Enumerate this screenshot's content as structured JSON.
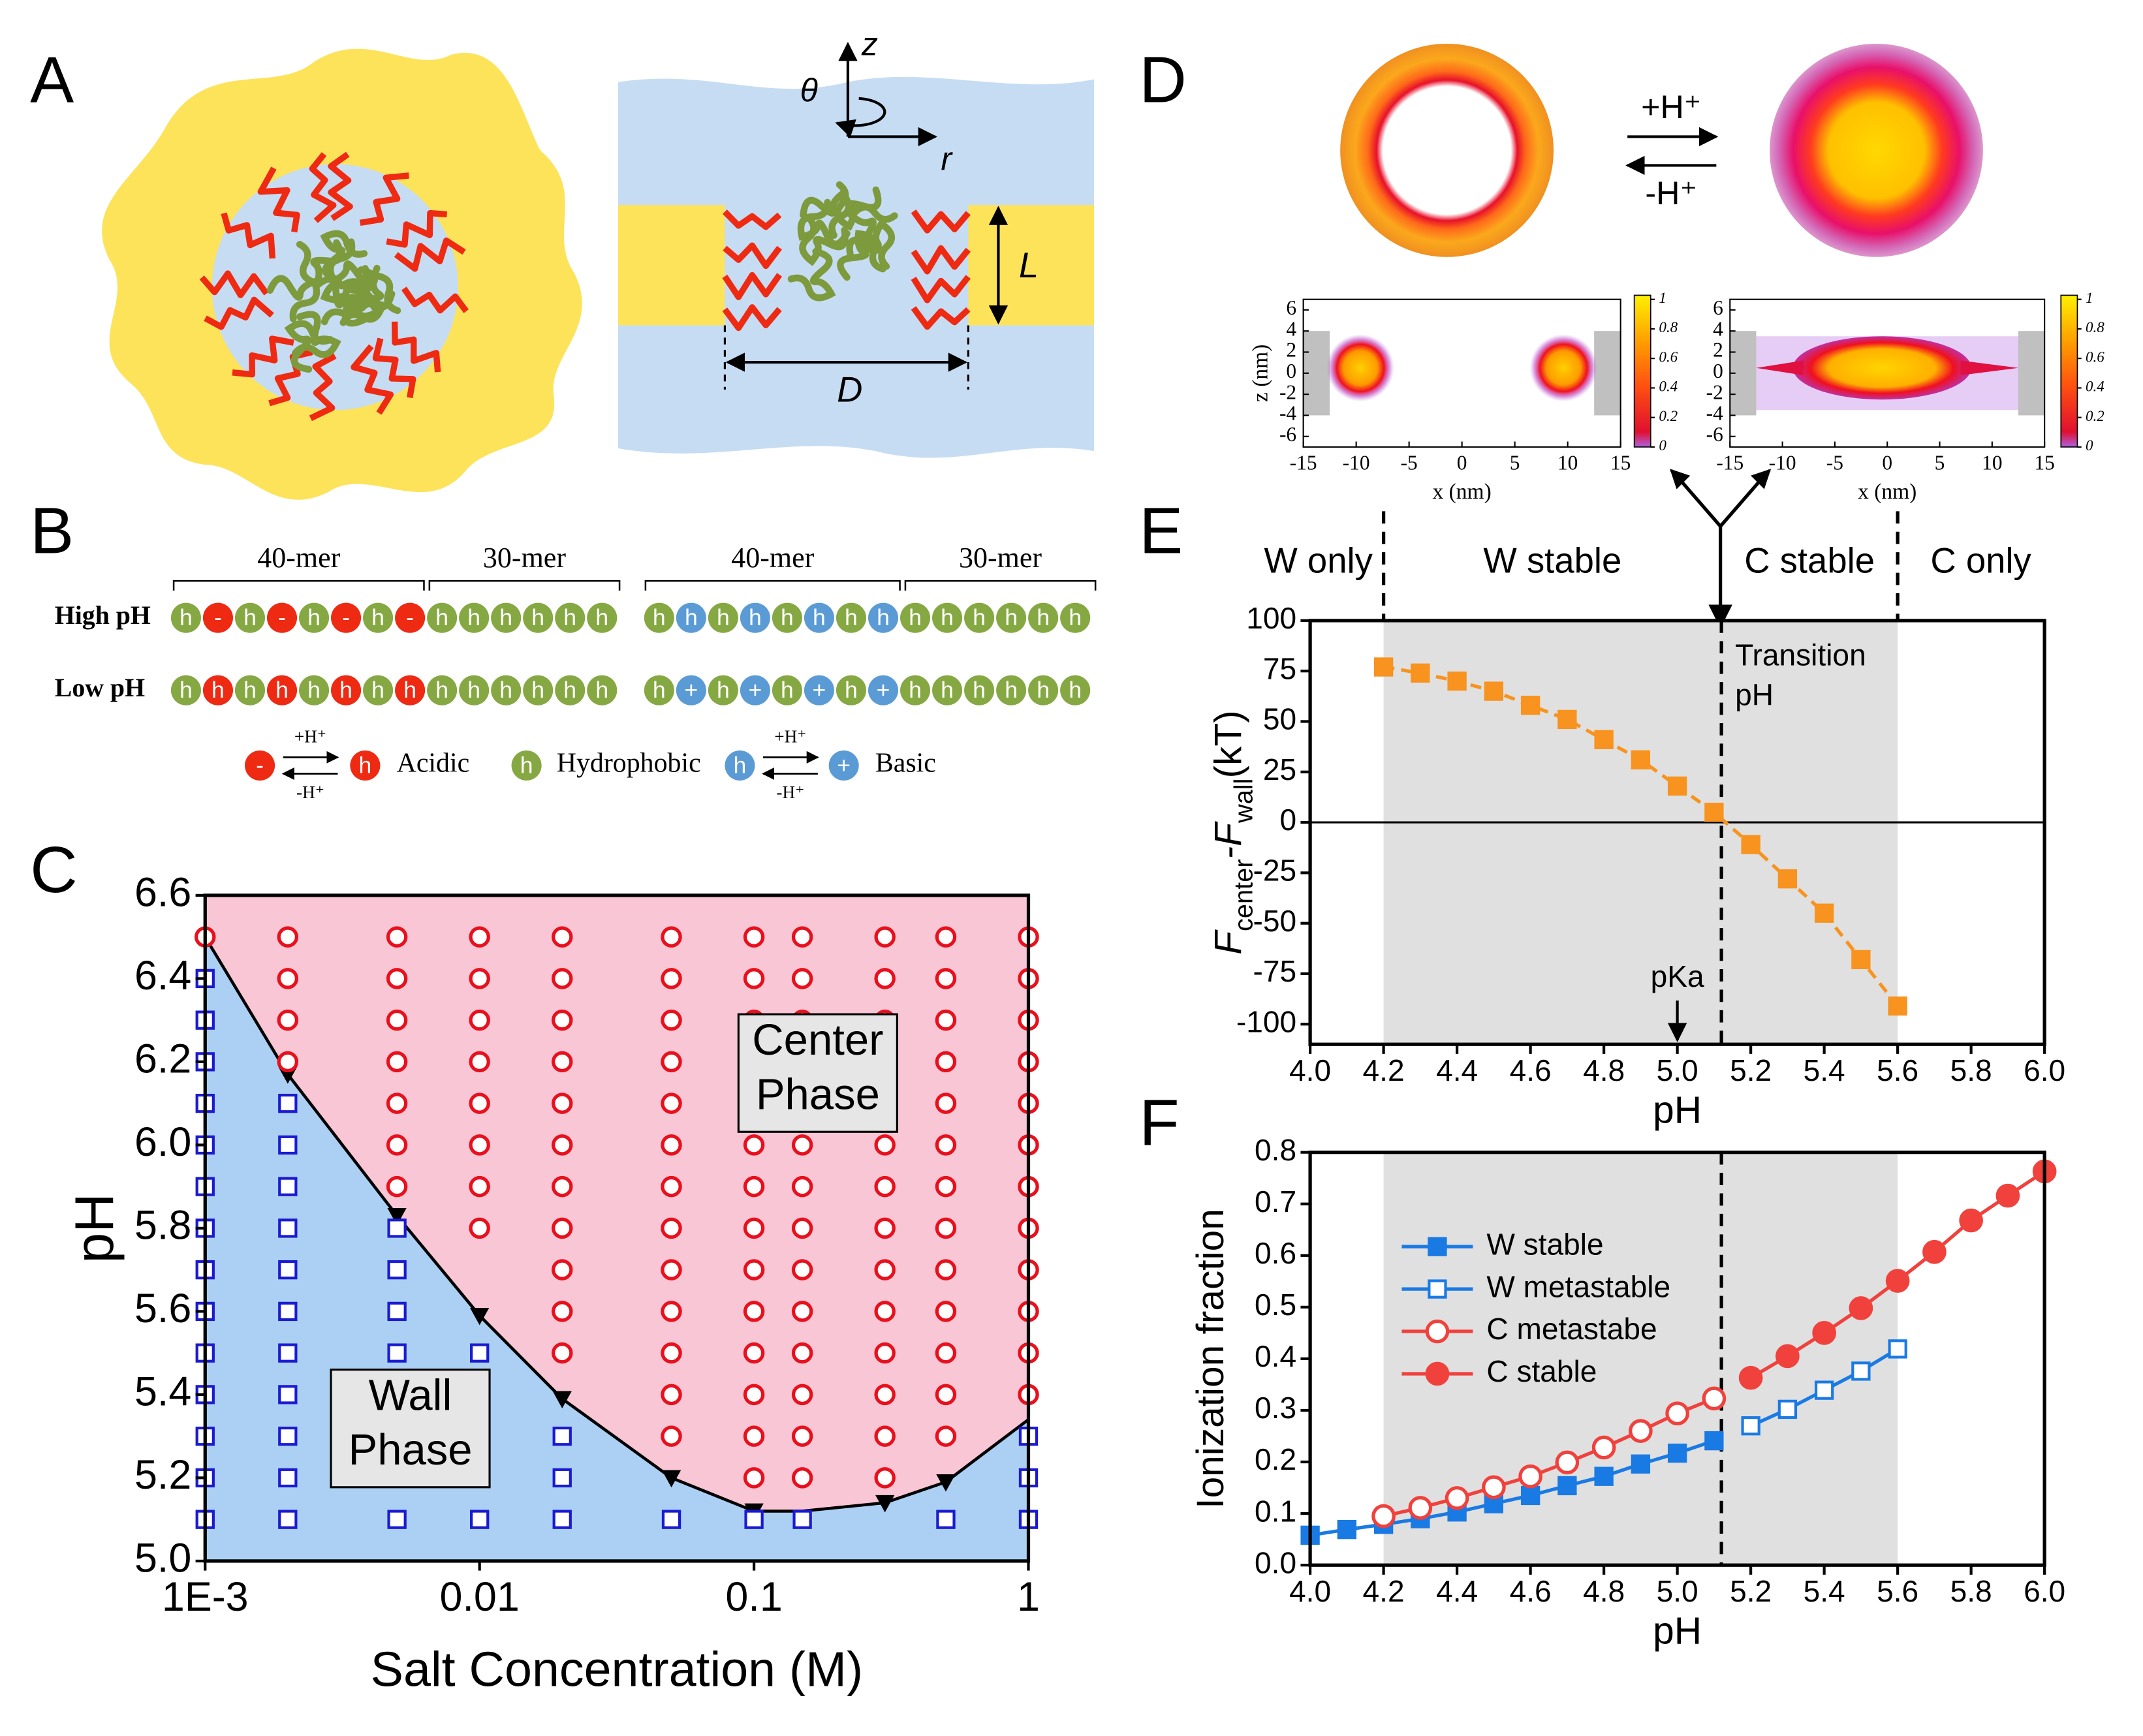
{
  "panels": [
    "A",
    "B",
    "C",
    "D",
    "E",
    "F"
  ],
  "panel_a": {
    "theta": "θ",
    "z": "z",
    "r": "r",
    "L": "L",
    "D": "D"
  },
  "panel_b": {
    "brackets": [
      "40-mer",
      "30-mer",
      "40-mer",
      "30-mer"
    ],
    "rows": [
      {
        "label": "High pH",
        "acidic": [
          "h",
          "-",
          "h",
          "-",
          "h",
          "-",
          "h",
          "-",
          "h",
          "h",
          "h",
          "h",
          "h",
          "h"
        ],
        "basic": [
          "h",
          "h",
          "h",
          "h",
          "h",
          "h",
          "h",
          "h",
          "h",
          "h",
          "h",
          "h",
          "h",
          "h"
        ]
      },
      {
        "label": "Low pH",
        "acidic": [
          "h",
          "h",
          "h",
          "h",
          "h",
          "h",
          "h",
          "h",
          "h",
          "h",
          "h",
          "h",
          "h",
          "h"
        ],
        "basic": [
          "h",
          "+",
          "h",
          "+",
          "h",
          "+",
          "h",
          "+",
          "h",
          "h",
          "h",
          "h",
          "h",
          "h"
        ]
      }
    ],
    "legend": {
      "acidic_charged": "-",
      "acidic_neutral": "h",
      "acidic": "Acidic",
      "hydrophobic_bead": "h",
      "hydrophobic": "Hydrophobic",
      "basic_neutral": "h",
      "basic_charged": "+",
      "basic": "Basic",
      "protonate": "+H⁺",
      "deprotonate": "-H⁺"
    }
  },
  "panel_d": {
    "protonate": "+H⁺",
    "deprotonate": "-H⁺",
    "maps": [
      {
        "xlabel": "x (nm)",
        "ylabel": "z (nm)",
        "xlim": [
          -15,
          15
        ],
        "ylim": [
          -7,
          7
        ],
        "xticks": [
          -15,
          -10,
          -5,
          0,
          5,
          10,
          15
        ],
        "yticks": [
          -6,
          -4,
          -2,
          0,
          2,
          4,
          6
        ],
        "cbar_lim": [
          0,
          1
        ],
        "cbar_ticks": [
          0,
          0.2,
          0.4,
          0.6,
          0.8,
          1
        ]
      },
      {
        "xlabel": "x (nm)",
        "xlim": [
          -15,
          15
        ],
        "ylim": [
          -7,
          7
        ],
        "xticks": [
          -15,
          -10,
          -5,
          0,
          5,
          10,
          15
        ],
        "yticks": [
          -6,
          -4,
          -2,
          0,
          2,
          4,
          6
        ],
        "cbar_lim": [
          0,
          1
        ],
        "cbar_ticks": [
          0,
          0.2,
          0.4,
          0.6,
          0.8,
          1
        ]
      }
    ]
  },
  "chart_data": [
    {
      "type": "scatter",
      "xlabel": "Salt Concentration (M)",
      "ylabel": "pH",
      "xscale": "log",
      "xlim": [
        0.001,
        1
      ],
      "ylim": [
        5.0,
        6.6
      ],
      "xticks": [
        {
          "value": 0.001,
          "label": "1E-3"
        },
        0.01,
        0.1,
        1
      ],
      "yticks": [
        {
          "value": 5,
          "label": "5.0"
        },
        5.2,
        5.4,
        5.6,
        5.8,
        {
          "value": 6,
          "label": "6.0"
        },
        6.2,
        6.4,
        6.6
      ],
      "regions": {
        "below": "#abd0f4",
        "above": "#f8c6d5"
      },
      "annotations": [
        [
          "Center",
          "Phase"
        ],
        [
          "Wall",
          "Phase"
        ]
      ],
      "series": [
        {
          "marker": "line",
          "color": "#000000",
          "x": [
            0.001,
            0.002,
            0.005,
            0.01,
            0.02,
            0.05,
            0.1,
            0.15,
            0.3,
            0.5,
            1
          ],
          "values": [
            6.5,
            6.17,
            5.83,
            5.59,
            5.39,
            5.2,
            5.12,
            5.12,
            5.14,
            5.19,
            5.34
          ]
        },
        {
          "marker": "triangle",
          "color": "#000000",
          "x": [
            0.002,
            0.005,
            0.01,
            0.02,
            0.05,
            0.1,
            0.3,
            0.5
          ],
          "values": [
            6.17,
            5.83,
            5.59,
            5.39,
            5.2,
            5.12,
            5.14,
            5.19
          ]
        },
        {
          "marker": "square",
          "color": "#1a1ad2",
          "x": [
            0.001,
            0.001,
            0.001,
            0.001,
            0.001,
            0.001,
            0.001,
            0.001,
            0.001,
            0.001,
            0.001,
            0.001,
            0.001,
            0.001,
            0.002,
            0.002,
            0.002,
            0.002,
            0.002,
            0.002,
            0.002,
            0.002,
            0.002,
            0.002,
            0.002,
            0.005,
            0.005,
            0.005,
            0.005,
            0.005,
            0.005,
            0.005,
            0.005,
            0.01,
            0.01,
            0.02,
            0.02,
            0.02,
            0.05,
            0.1,
            0.15,
            0.5,
            1,
            1,
            1
          ],
          "values": [
            6.4,
            6.3,
            6.2,
            6.1,
            6.0,
            5.9,
            5.8,
            5.7,
            5.6,
            5.5,
            5.4,
            5.3,
            5.2,
            5.1,
            6.1,
            6.0,
            5.9,
            5.8,
            5.7,
            5.6,
            5.5,
            5.4,
            5.3,
            5.2,
            5.1,
            5.8,
            5.7,
            5.6,
            5.5,
            5.4,
            5.3,
            5.2,
            5.1,
            5.5,
            5.1,
            5.3,
            5.2,
            5.1,
            5.1,
            5.1,
            5.1,
            5.1,
            5.3,
            5.2,
            5.1
          ]
        },
        {
          "marker": "circle",
          "color": "#e8101c",
          "x": [
            0.001,
            0.002,
            0.002,
            0.002,
            0.002,
            0.005,
            0.005,
            0.005,
            0.005,
            0.005,
            0.005,
            0.005,
            0.01,
            0.01,
            0.01,
            0.01,
            0.01,
            0.01,
            0.01,
            0.01,
            0.02,
            0.02,
            0.02,
            0.02,
            0.02,
            0.02,
            0.02,
            0.02,
            0.02,
            0.02,
            0.02,
            0.05,
            0.05,
            0.05,
            0.05,
            0.05,
            0.05,
            0.05,
            0.05,
            0.05,
            0.05,
            0.05,
            0.05,
            0.05,
            0.1,
            0.1,
            0.1,
            0.1,
            0.1,
            0.1,
            0.1,
            0.1,
            0.1,
            0.1,
            0.1,
            0.1,
            0.1,
            0.1,
            0.15,
            0.15,
            0.15,
            0.15,
            0.15,
            0.15,
            0.15,
            0.15,
            0.15,
            0.15,
            0.15,
            0.15,
            0.15,
            0.15,
            0.3,
            0.3,
            0.3,
            0.3,
            0.3,
            0.3,
            0.3,
            0.3,
            0.3,
            0.3,
            0.3,
            0.3,
            0.3,
            0.3,
            0.5,
            0.5,
            0.5,
            0.5,
            0.5,
            0.5,
            0.5,
            0.5,
            0.5,
            0.5,
            0.5,
            0.5,
            0.5,
            1,
            1,
            1,
            1,
            1,
            1,
            1,
            1,
            1,
            1,
            1,
            1
          ],
          "values": [
            6.5,
            6.5,
            6.4,
            6.3,
            6.2,
            6.5,
            6.4,
            6.3,
            6.2,
            6.1,
            6.0,
            5.9,
            6.5,
            6.4,
            6.3,
            6.2,
            6.1,
            6.0,
            5.9,
            5.8,
            6.5,
            6.4,
            6.3,
            6.2,
            6.1,
            6.0,
            5.9,
            5.8,
            5.7,
            5.6,
            5.5,
            6.5,
            6.4,
            6.3,
            6.2,
            6.1,
            6.0,
            5.9,
            5.8,
            5.7,
            5.6,
            5.5,
            5.4,
            5.3,
            6.5,
            6.4,
            6.3,
            6.2,
            6.1,
            6.0,
            5.9,
            5.8,
            5.7,
            5.6,
            5.5,
            5.4,
            5.3,
            5.2,
            6.5,
            6.4,
            6.3,
            6.2,
            6.1,
            6.0,
            5.9,
            5.8,
            5.7,
            5.6,
            5.5,
            5.4,
            5.3,
            5.2,
            6.5,
            6.4,
            6.3,
            6.2,
            6.1,
            6.0,
            5.9,
            5.8,
            5.7,
            5.6,
            5.5,
            5.4,
            5.3,
            5.2,
            6.5,
            6.4,
            6.3,
            6.2,
            6.1,
            6.0,
            5.9,
            5.8,
            5.7,
            5.6,
            5.5,
            5.4,
            5.3,
            6.5,
            6.4,
            6.3,
            6.2,
            6.1,
            6.0,
            5.9,
            5.8,
            5.7,
            5.6,
            5.5,
            5.4
          ]
        }
      ]
    },
    {
      "type": "line",
      "xlabel": "pH",
      "ylabel": [
        "F",
        "center",
        "-F",
        "wall",
        "(kT)"
      ],
      "xlim": [
        4,
        6
      ],
      "ylim": [
        -110,
        100
      ],
      "xticks": [
        {
          "value": 4,
          "label": "4.0"
        },
        4.2,
        4.4,
        4.6,
        4.8,
        {
          "value": 5,
          "label": "5.0"
        },
        5.2,
        5.4,
        5.6,
        5.8,
        {
          "value": 6,
          "label": "6.0"
        }
      ],
      "yticks": [
        -100,
        -75,
        -50,
        -25,
        0,
        25,
        50,
        75,
        100
      ],
      "shade": [
        4.2,
        5.6
      ],
      "shade_color": "#e0e0e0",
      "transition": 5.12,
      "zero_line": true,
      "phase_labels": [
        "W only",
        "W stable",
        "C stable",
        "C only"
      ],
      "transition_label": [
        "Transition",
        "pH"
      ],
      "pka": 5,
      "pka_label": "pKa",
      "series": [
        {
          "marker": "square",
          "filled": true,
          "dash": true,
          "color": "#f7931e",
          "x": [
            4.2,
            4.3,
            4.4,
            4.5,
            4.6,
            4.7,
            4.8,
            4.9,
            5.0,
            5.1,
            5.2,
            5.3,
            5.4,
            5.5,
            5.6
          ],
          "values": [
            77,
            74,
            70,
            65,
            58,
            51,
            41,
            31,
            18,
            5,
            -11,
            -28,
            -45,
            -68,
            -91
          ]
        }
      ]
    },
    {
      "type": "line",
      "xlabel": "pH",
      "ylabel": "Ionization fraction",
      "xlim": [
        4,
        6
      ],
      "ylim": [
        0,
        0.8
      ],
      "xticks": [
        {
          "value": 4,
          "label": "4.0"
        },
        4.2,
        4.4,
        4.6,
        4.8,
        {
          "value": 5,
          "label": "5.0"
        },
        5.2,
        5.4,
        5.6,
        5.8,
        {
          "value": 6,
          "label": "6.0"
        }
      ],
      "yticks": [
        {
          "value": 0,
          "label": "0.0"
        },
        0.1,
        0.2,
        0.3,
        0.4,
        0.5,
        0.6,
        0.7,
        0.8
      ],
      "shade": [
        4.2,
        5.6
      ],
      "shade_color": "#e0e0e0",
      "transition": 5.12,
      "legend": "upper left",
      "series": [
        {
          "name": "W stable",
          "marker": "square",
          "filled": true,
          "color": "#1a7ae4",
          "x": [
            4.0,
            4.1,
            4.2,
            4.3,
            4.4,
            4.5,
            4.6,
            4.7,
            4.8,
            4.9,
            5.0,
            5.1
          ],
          "values": [
            0.058,
            0.069,
            0.079,
            0.09,
            0.103,
            0.119,
            0.135,
            0.154,
            0.172,
            0.196,
            0.217,
            0.241
          ]
        },
        {
          "name": "W metastable",
          "marker": "square",
          "filled": false,
          "color": "#1a7ae4",
          "x": [
            5.2,
            5.3,
            5.4,
            5.5,
            5.6
          ],
          "values": [
            0.27,
            0.302,
            0.339,
            0.376,
            0.419
          ]
        },
        {
          "name": "C metastabe",
          "marker": "circle",
          "filled": false,
          "color": "#f0413c",
          "x": [
            4.2,
            4.3,
            4.4,
            4.5,
            4.6,
            4.7,
            4.8,
            4.9,
            5.0,
            5.1
          ],
          "values": [
            0.095,
            0.111,
            0.13,
            0.151,
            0.172,
            0.199,
            0.228,
            0.26,
            0.294,
            0.323
          ]
        },
        {
          "name": "C stable",
          "marker": "circle",
          "filled": true,
          "color": "#f0413c",
          "x": [
            5.2,
            5.3,
            5.4,
            5.5,
            5.6,
            5.7,
            5.8,
            5.9,
            6.0
          ],
          "values": [
            0.363,
            0.405,
            0.45,
            0.498,
            0.551,
            0.607,
            0.668,
            0.716,
            0.763
          ]
        }
      ]
    }
  ]
}
